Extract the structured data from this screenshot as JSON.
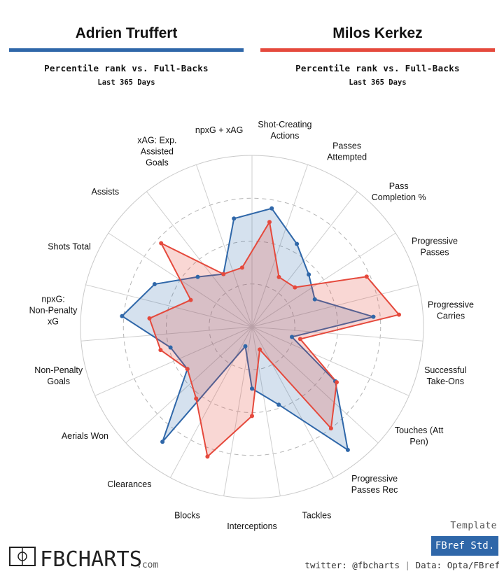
{
  "header": {
    "player1": {
      "name": "Adrien Truffert",
      "color": "#2f67a9"
    },
    "player2": {
      "name": "Milos Kerkez",
      "color": "#e5493c"
    },
    "subtitle": "Percentile rank vs. Full-Backs",
    "period": "Last 365 Days"
  },
  "chart_data": {
    "type": "radar",
    "range": [
      0,
      100
    ],
    "grid": true,
    "categories": [
      "Shot-Creating Actions",
      "Passes Attempted",
      "Pass Completion %",
      "Progressive Passes",
      "Progressive Carries",
      "Successful Take-Ons",
      "Touches (Att Pen)",
      "Progressive Passes Rec",
      "Tackles",
      "Interceptions",
      "Blocks",
      "Clearances",
      "Aerials Won",
      "Non-Penalty Goals",
      "npxG: Non-Penalty xG",
      "Shots Total",
      "Assists",
      "xAG: Exp. Assisted Goals",
      "npxG + xAG"
    ],
    "series": [
      {
        "name": "Adrien Truffert",
        "color": "#2f67a9",
        "values": [
          70,
          55,
          45,
          40,
          71,
          24,
          58,
          91,
          48,
          36,
          12,
          85,
          45,
          49,
          76,
          62,
          43,
          35,
          64
        ]
      },
      {
        "name": "Milos Kerkez",
        "color": "#e5493c",
        "values": [
          62,
          33,
          34,
          73,
          86,
          29,
          59,
          75,
          14,
          52,
          80,
          53,
          45,
          55,
          60,
          39,
          72,
          35,
          35
        ]
      }
    ]
  },
  "branding": {
    "logo_text": "FBCHARTS",
    "logo_suffix": ".com",
    "template_label": "Template",
    "template_name": "FBref Std.",
    "twitter": "twitter: @fbcharts",
    "separator": "|",
    "source": "Data: Opta/FBref"
  }
}
